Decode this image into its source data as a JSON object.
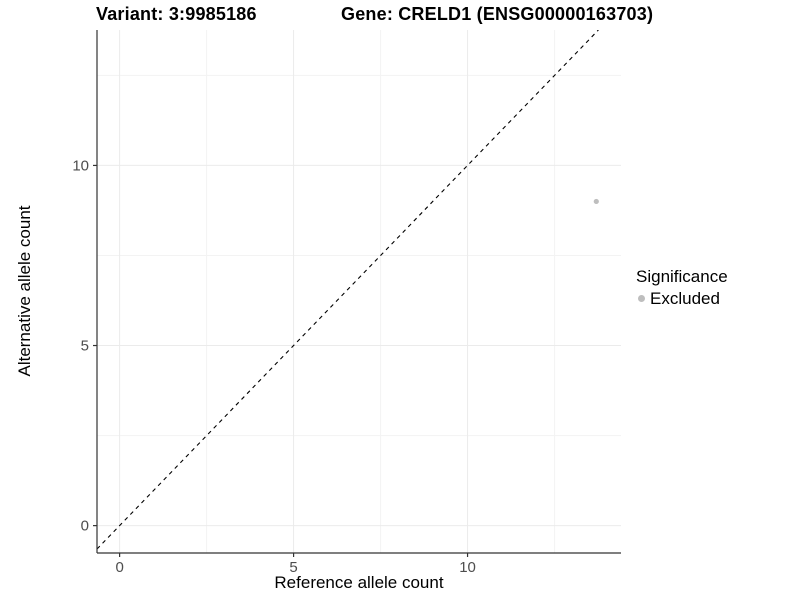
{
  "chart_data": {
    "type": "scatter",
    "titles": {
      "variant": "Variant: 3:9985186",
      "gene": "Gene: CRELD1 (ENSG00000163703)"
    },
    "xlabel": "Reference allele count",
    "ylabel": "Alternative allele count",
    "x_ticks": [
      0,
      5,
      10
    ],
    "y_ticks": [
      0,
      5,
      10
    ],
    "x_minor_ticks": [
      2.5,
      7.5,
      12.5
    ],
    "y_minor_ticks": [
      2.5,
      7.5,
      12.5
    ],
    "xlim": [
      -0.65,
      14.41
    ],
    "ylim": [
      -0.76,
      13.76
    ],
    "grid": true,
    "identity_line": {
      "style": "dashed",
      "slope": 1,
      "intercept": 0
    },
    "series": [
      {
        "name": "Excluded",
        "color": "#bebebe",
        "point_radius": 2.6,
        "points": [
          {
            "x": 13.7,
            "y": 9
          }
        ]
      }
    ],
    "legend": {
      "position": "right",
      "title": "Significance",
      "items": [
        {
          "label": "Excluded",
          "color": "#bebebe"
        }
      ]
    }
  },
  "colors": {
    "background": "#ffffff",
    "grid_major": "#ebebeb",
    "grid_minor": "#f3f3f3",
    "axis_line": "#333333",
    "tick_text": "#4d4d4d",
    "title_text": "#000000",
    "identity_line": "#000000",
    "point": "#bebebe"
  }
}
